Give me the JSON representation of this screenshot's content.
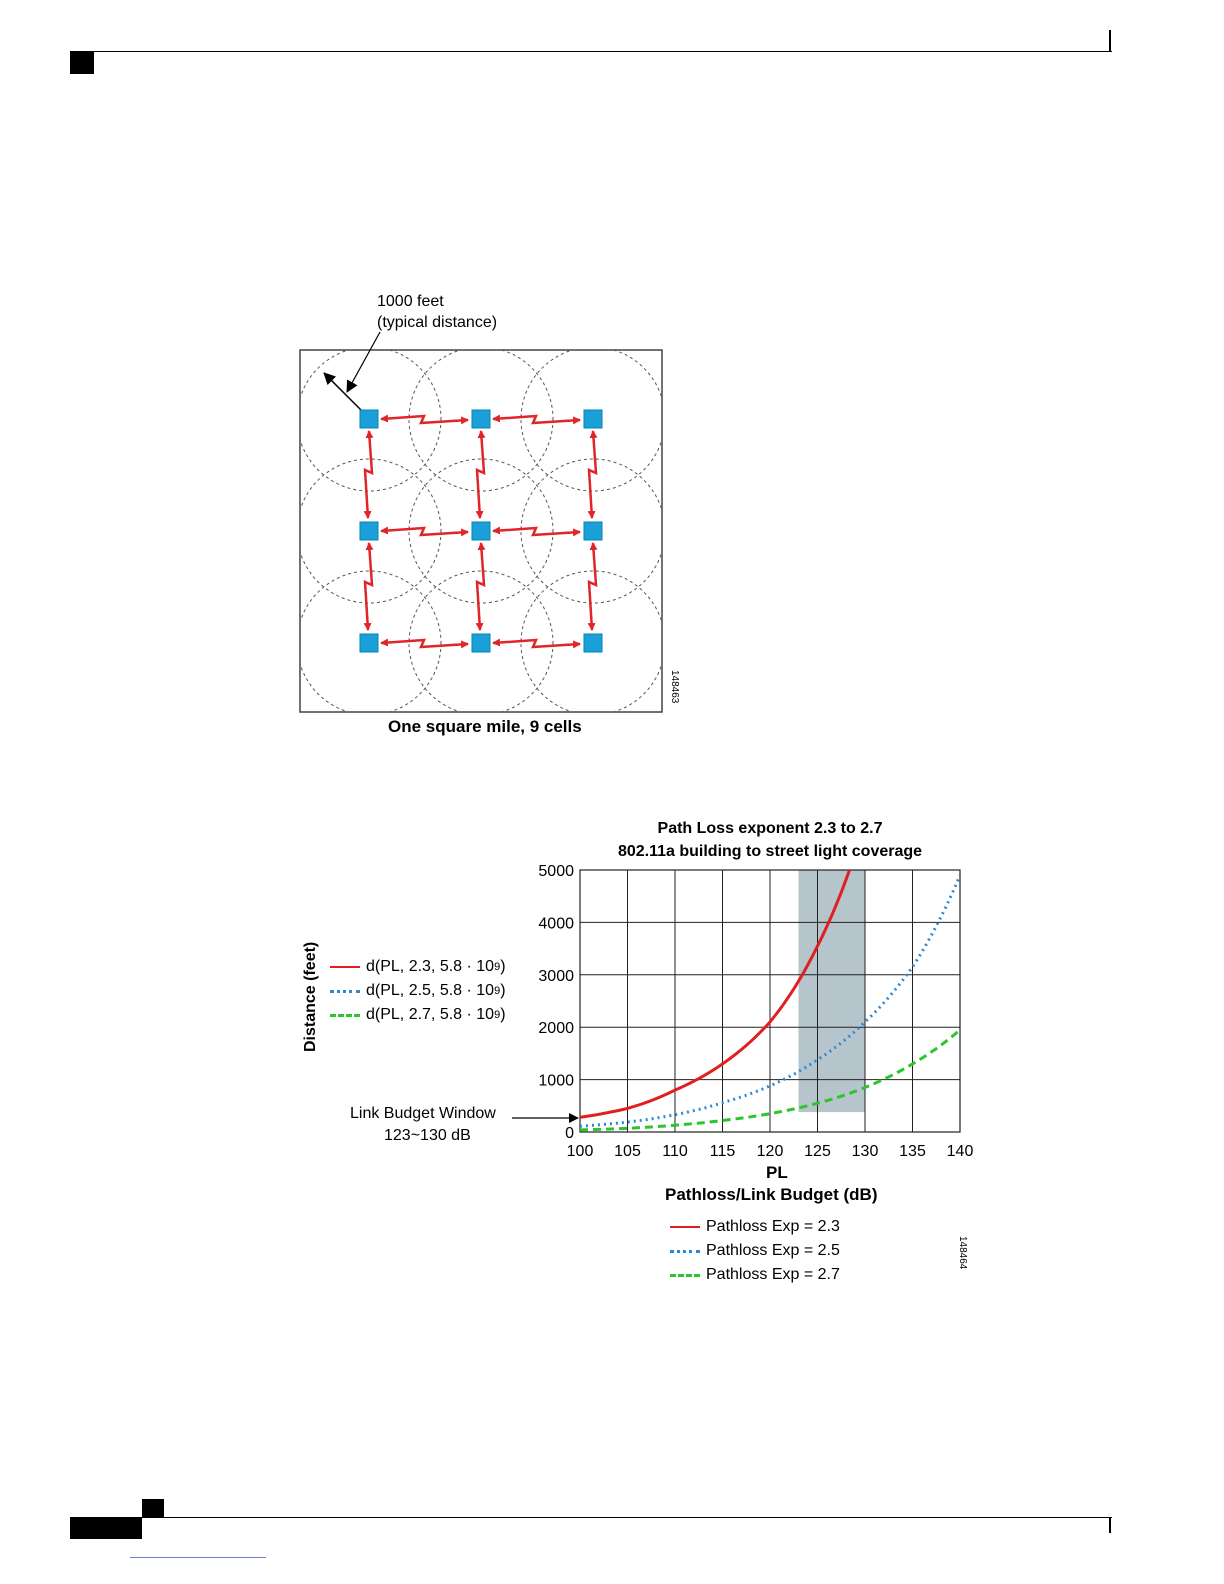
{
  "figure1": {
    "annotation_line1": "1000 feet",
    "annotation_line2": "(typical distance)",
    "caption": "One square mile, 9 cells",
    "figure_id": "148463"
  },
  "figure2": {
    "figure_id": "148464",
    "window_label_line1": "Link Budget Window",
    "window_label_line2": "123~130 dB",
    "formula_legend": [
      {
        "prefix": "d(PL, 2.3, 5.8 · 10",
        "exp": "9",
        "suffix": ")",
        "color": "#e02020",
        "style": "solid"
      },
      {
        "prefix": "d(PL, 2.5, 5.8 · 10",
        "exp": "9",
        "suffix": ")",
        "color": "#2a8ad8",
        "style": "dotted"
      },
      {
        "prefix": "d(PL, 2.7, 5.8 · 10",
        "exp": "9",
        "suffix": ")",
        "color": "#2ec42e",
        "style": "dashed"
      }
    ]
  },
  "chart_data": {
    "type": "line",
    "title": "Path Loss exponent 2.3 to 2.7",
    "subtitle": "802.11a building to street light coverage",
    "ylabel": "Distance (feet)",
    "xlabel": "PL",
    "xlabel2": "Pathloss/Link Budget (dB)",
    "x_ticks": [
      100,
      105,
      110,
      115,
      120,
      125,
      130,
      135,
      140
    ],
    "y_ticks": [
      0,
      1000,
      2000,
      3000,
      4000,
      5000
    ],
    "xlim": [
      100,
      140
    ],
    "ylim": [
      0,
      5000
    ],
    "grid": true,
    "shaded_window": [
      123,
      130
    ],
    "x": [
      100,
      105,
      110,
      115,
      120,
      125,
      130,
      135,
      140
    ],
    "series": [
      {
        "name": "Pathloss Exp = 2.3",
        "color": "#e02020",
        "style": "solid",
        "values": [
          280,
          450,
          800,
          1300,
          2100,
          3550,
          5900,
          null,
          null
        ]
      },
      {
        "name": "Pathloss Exp = 2.5",
        "color": "#2a8ad8",
        "style": "dotted",
        "values": [
          110,
          190,
          330,
          560,
          880,
          1380,
          2100,
          3150,
          4900
        ]
      },
      {
        "name": "Pathloss Exp = 2.7",
        "color": "#2ec42e",
        "style": "dashed",
        "values": [
          40,
          70,
          130,
          220,
          350,
          550,
          850,
          1300,
          1950
        ]
      }
    ],
    "legend_position": "bottom"
  }
}
